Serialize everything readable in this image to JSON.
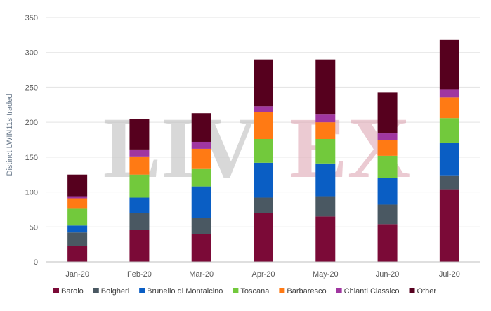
{
  "chart_data": {
    "type": "bar",
    "stacked": true,
    "title": "",
    "xlabel": "",
    "ylabel": "Distinct LWIN11s traded",
    "ylim": [
      0,
      350
    ],
    "yticks": [
      0,
      50,
      100,
      150,
      200,
      250,
      300,
      350
    ],
    "grid": true,
    "legend_position": "bottom",
    "categories": [
      "Jan-20",
      "Feb-20",
      "Mar-20",
      "Apr-20",
      "May-20",
      "Jun-20",
      "Jul-20"
    ],
    "series": [
      {
        "name": "Barolo",
        "color": "#7b0a37",
        "values": [
          23,
          46,
          40,
          70,
          65,
          54,
          104
        ]
      },
      {
        "name": "Bolgheri",
        "color": "#4a5862",
        "values": [
          19,
          24,
          23,
          22,
          29,
          28,
          20
        ]
      },
      {
        "name": "Brunello di Montalcino",
        "color": "#0a5ec4",
        "values": [
          10,
          22,
          45,
          50,
          47,
          38,
          47
        ]
      },
      {
        "name": "Toscana",
        "color": "#72c93c",
        "values": [
          25,
          33,
          25,
          34,
          35,
          32,
          35
        ]
      },
      {
        "name": "Barbaresco",
        "color": "#ff7a14",
        "values": [
          14,
          26,
          29,
          39,
          24,
          22,
          30
        ]
      },
      {
        "name": "Chianti Classico",
        "color": "#a036a0",
        "values": [
          3,
          10,
          10,
          8,
          11,
          10,
          11
        ]
      },
      {
        "name": "Other",
        "color": "#56001e",
        "values": [
          31,
          44,
          41,
          67,
          79,
          59,
          71
        ]
      }
    ]
  },
  "watermark": {
    "text_left": "LIV",
    "text_right": "EX"
  }
}
